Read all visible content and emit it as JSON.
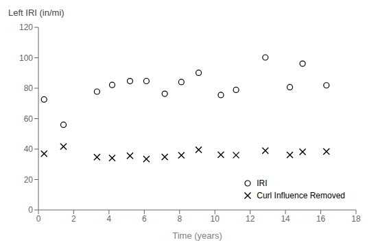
{
  "chart_data": {
    "type": "scatter",
    "xlabel": "Time (years)",
    "ylabel": "Left IRI (in/mi)",
    "x": [
      0.32,
      1.42,
      3.32,
      4.18,
      5.19,
      6.12,
      7.16,
      8.1,
      9.08,
      10.34,
      11.2,
      12.86,
      14.25,
      14.97,
      16.32
    ],
    "series": [
      {
        "name": "IRI",
        "color": "black",
        "marker": "circle",
        "values": [
          72.61,
          56.0,
          77.76,
          82.17,
          84.69,
          84.72,
          76.36,
          84.06,
          90.16,
          75.55,
          78.92,
          100.22,
          80.69,
          96.14,
          81.92
        ]
      },
      {
        "name": "Curl Influence Removed",
        "color": "black",
        "marker": "x",
        "values": [
          36.92,
          41.71,
          34.69,
          34.16,
          35.62,
          33.53,
          34.82,
          35.91,
          39.5,
          36.33,
          36.01,
          39.03,
          36.23,
          38.22,
          38.42
        ]
      }
    ],
    "xlim": [
      0,
      18
    ],
    "ylim": [
      0,
      120
    ],
    "xticks": [
      0,
      2,
      4,
      6,
      8,
      10,
      12,
      14,
      16,
      18
    ],
    "yticks": [
      0,
      20,
      40,
      60,
      80,
      100,
      120
    ],
    "grid": false,
    "legend": "lower right"
  }
}
